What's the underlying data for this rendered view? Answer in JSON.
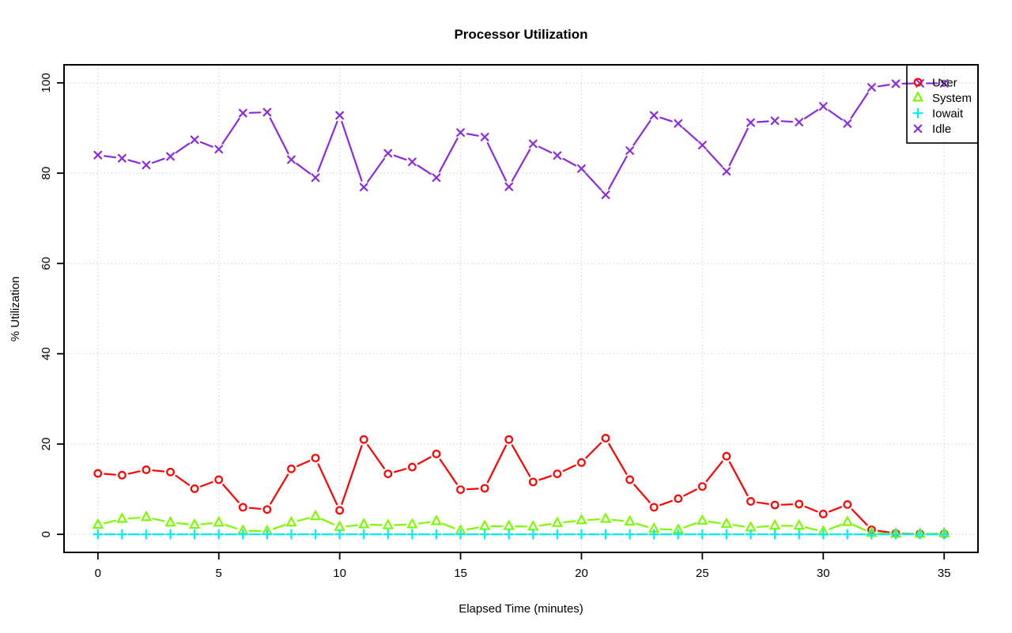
{
  "chart_data": {
    "type": "line",
    "title": "Processor Utilization",
    "xlabel": "Elapsed Time (minutes)",
    "ylabel": "% Utilization",
    "grid": "dotted",
    "grid_color": "#CFCFCF",
    "axis_color": "#000000",
    "background_color": "#FFFFFF",
    "legend_position": "top-right",
    "xlim": [
      0,
      35
    ],
    "ylim": [
      0,
      100
    ],
    "xticks": [
      0,
      5,
      10,
      15,
      20,
      25,
      30,
      35
    ],
    "yticks": [
      0,
      20,
      40,
      60,
      80,
      100
    ],
    "x": [
      0,
      1,
      2,
      3,
      4,
      5,
      6,
      7,
      8,
      9,
      10,
      11,
      12,
      13,
      14,
      15,
      16,
      17,
      18,
      19,
      20,
      21,
      22,
      23,
      24,
      25,
      26,
      27,
      28,
      29,
      30,
      31,
      32,
      33,
      34,
      35
    ],
    "series": [
      {
        "name": "User",
        "color": "#FF0000",
        "marker": "circle",
        "values": [
          13.5,
          13.1,
          14.3,
          13.8,
          10.1,
          12.1,
          6.0,
          5.5,
          14.5,
          16.9,
          5.3,
          21.0,
          13.4,
          14.9,
          17.8,
          9.9,
          10.2,
          21.0,
          11.6,
          13.4,
          15.9,
          21.3,
          12.1,
          6.0,
          7.9,
          10.6,
          17.3,
          7.3,
          6.5,
          6.7,
          4.5,
          6.6,
          1.0,
          0.2,
          0.1,
          0.1
        ]
      },
      {
        "name": "System",
        "color": "#7CFC00",
        "marker": "triangle",
        "values": [
          2.1,
          3.4,
          3.8,
          2.6,
          2.1,
          2.6,
          0.8,
          0.7,
          2.6,
          4.0,
          1.6,
          2.2,
          2.0,
          2.2,
          2.9,
          0.8,
          1.8,
          1.8,
          1.7,
          2.5,
          3.1,
          3.4,
          2.8,
          1.2,
          1.0,
          3.0,
          2.3,
          1.5,
          1.9,
          1.9,
          0.6,
          2.7,
          0.3,
          0.1,
          0.1,
          0.2
        ]
      },
      {
        "name": "Iowait",
        "color": "#00EEEE",
        "marker": "plus",
        "values": [
          0,
          0,
          0,
          0,
          0,
          0,
          0,
          0,
          0,
          0,
          0,
          0,
          0,
          0,
          0,
          0,
          0,
          0,
          0,
          0,
          0,
          0,
          0,
          0,
          0,
          0,
          0,
          0,
          0,
          0,
          0,
          0,
          0,
          0,
          0,
          0
        ]
      },
      {
        "name": "Idle",
        "color": "#8A2BE2",
        "marker": "x",
        "values": [
          84.0,
          83.3,
          81.8,
          83.7,
          87.4,
          85.3,
          93.3,
          93.5,
          83.0,
          79.0,
          92.8,
          76.9,
          84.4,
          82.5,
          79.0,
          89.0,
          88.0,
          77.0,
          86.5,
          83.9,
          81.0,
          75.2,
          85.0,
          92.8,
          91.0,
          86.2,
          80.4,
          91.2,
          91.6,
          91.3,
          94.8,
          91.0,
          99.0,
          99.8,
          99.9,
          99.9
        ]
      }
    ],
    "legend_labels": [
      "User",
      "System",
      "Iowait",
      "Idle"
    ]
  }
}
